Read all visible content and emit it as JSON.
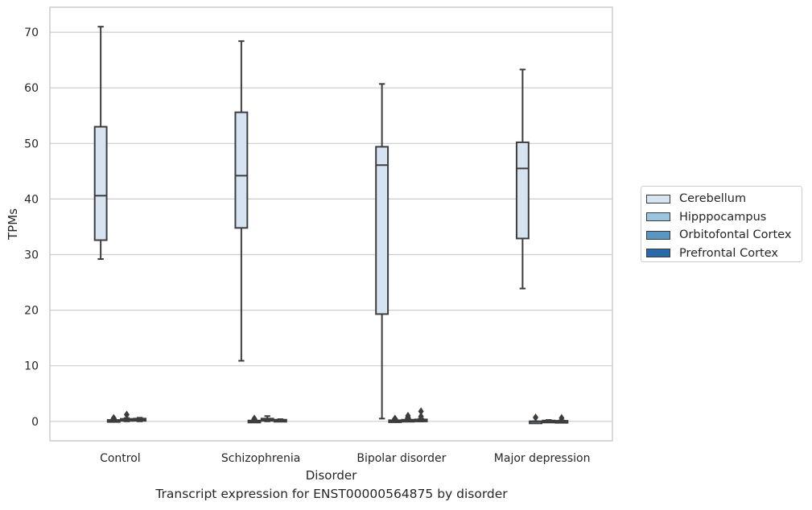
{
  "caption": "Transcript expression for ENST00000564875 by disorder",
  "chart_data": {
    "type": "box",
    "xlabel": "Disorder",
    "ylabel": "TPMs",
    "ylim": [
      -3.5,
      74.5
    ],
    "yticks": [
      0,
      10,
      20,
      30,
      40,
      50,
      60,
      70
    ],
    "grid": true,
    "legend_position": "right",
    "categories": [
      "Control",
      "Schizophrenia",
      "Bipolar disorder",
      "Major depression"
    ],
    "series": [
      {
        "name": "Cerebellum",
        "color": "#d6e4f2",
        "boxes": [
          {
            "whisker_low": 29.2,
            "q1": 32.6,
            "median": 40.6,
            "q3": 53.0,
            "whisker_high": 71.0,
            "outliers": []
          },
          {
            "whisker_low": 10.9,
            "q1": 34.8,
            "median": 44.2,
            "q3": 55.6,
            "whisker_high": 68.4,
            "outliers": []
          },
          {
            "whisker_low": 0.5,
            "q1": 19.3,
            "median": 46.1,
            "q3": 49.4,
            "whisker_high": 60.7,
            "outliers": []
          },
          {
            "whisker_low": 23.9,
            "q1": 32.9,
            "median": 45.5,
            "q3": 50.2,
            "whisker_high": 63.3,
            "outliers": []
          }
        ]
      },
      {
        "name": "Hipppocampus",
        "color": "#9ac4df",
        "boxes": [
          {
            "whisker_low": 0.0,
            "q1": 0.05,
            "median": 0.1,
            "q3": 0.25,
            "whisker_high": 0.4,
            "outliers": [
              0.6
            ]
          },
          {
            "whisker_low": 0.0,
            "q1": 0.02,
            "median": 0.05,
            "q3": 0.15,
            "whisker_high": 0.3,
            "outliers": [
              0.5
            ]
          },
          {
            "whisker_low": 0.0,
            "q1": 0.03,
            "median": 0.08,
            "q3": 0.2,
            "whisker_high": 0.35,
            "outliers": [
              0.5
            ]
          },
          {
            "whisker_low": 0.0,
            "q1": 0.0,
            "median": 0.0,
            "q3": 0.0,
            "whisker_high": 0.0,
            "outliers": [
              0.7
            ]
          }
        ]
      },
      {
        "name": "Orbitofontal Cortex",
        "color": "#5b96c2",
        "boxes": [
          {
            "whisker_low": 0.0,
            "q1": 0.1,
            "median": 0.25,
            "q3": 0.45,
            "whisker_high": 0.6,
            "outliers": [
              1.2
            ]
          },
          {
            "whisker_low": 0.0,
            "q1": 0.1,
            "median": 0.3,
            "q3": 0.5,
            "whisker_high": 0.95,
            "outliers": []
          },
          {
            "whisker_low": 0.0,
            "q1": 0.05,
            "median": 0.15,
            "q3": 0.3,
            "whisker_high": 0.5,
            "outliers": [
              1.0,
              0.7
            ]
          },
          {
            "whisker_low": 0.0,
            "q1": 0.0,
            "median": 0.05,
            "q3": 0.15,
            "whisker_high": 0.25,
            "outliers": []
          }
        ]
      },
      {
        "name": "Prefrontal Cortex",
        "color": "#2b6aa8",
        "boxes": [
          {
            "whisker_low": 0.0,
            "q1": 0.1,
            "median": 0.3,
            "q3": 0.5,
            "whisker_high": 0.65,
            "outliers": []
          },
          {
            "whisker_low": 0.0,
            "q1": 0.05,
            "median": 0.15,
            "q3": 0.3,
            "whisker_high": 0.4,
            "outliers": []
          },
          {
            "whisker_low": 0.0,
            "q1": 0.1,
            "median": 0.2,
            "q3": 0.35,
            "whisker_high": 0.5,
            "outliers": [
              1.8,
              0.9
            ]
          },
          {
            "whisker_low": 0.0,
            "q1": 0.0,
            "median": 0.05,
            "q3": 0.1,
            "whisker_high": 0.2,
            "outliers": [
              0.6
            ]
          }
        ]
      }
    ]
  }
}
